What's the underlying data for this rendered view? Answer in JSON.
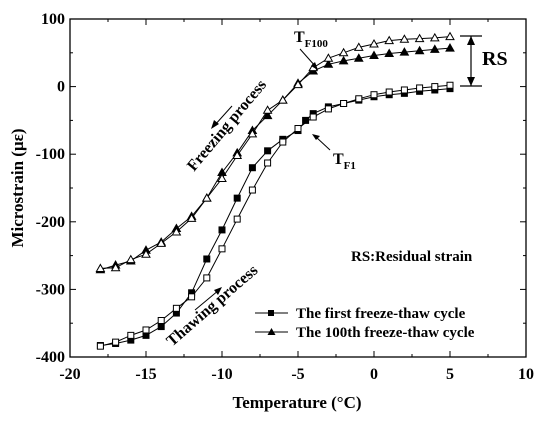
{
  "chart_data": {
    "type": "line",
    "xlabel": "Temperature (°C)",
    "ylabel": "Microstrain (με)",
    "xlim": [
      -20,
      10
    ],
    "ylim": [
      -400,
      100
    ],
    "xticks": [
      -20,
      -15,
      -10,
      -5,
      0,
      5,
      10
    ],
    "yticks": [
      -400,
      -300,
      -200,
      -100,
      0,
      100
    ],
    "grid": false,
    "legend_position": "bottom-right",
    "series": [
      {
        "name": "The first freeze-thaw cycle",
        "marker": "square",
        "color": "#000000",
        "thawing": {
          "x": [
            -18.0,
            -17.0,
            -16.0,
            -15.0,
            -14.0,
            -13.0,
            -12.0,
            -11.0,
            -10.0,
            -9.0,
            -8.0,
            -7.0,
            -6.0,
            -5.0,
            -4.5,
            -4.0,
            -3.0,
            -2.0,
            -1.0,
            0.0,
            1.0,
            2.0,
            3.0,
            4.0,
            5.0
          ],
          "y": [
            -383,
            -380,
            -375,
            -368,
            -355,
            -335,
            -305,
            -255,
            -212,
            -165,
            -120,
            -95,
            -78,
            -65,
            -50,
            -40,
            -30,
            -25,
            -20,
            -15,
            -12,
            -10,
            -7,
            -5,
            -3
          ]
        },
        "freezing": {
          "x": [
            5.0,
            4.0,
            3.0,
            2.0,
            1.0,
            0.0,
            -1.0,
            -2.0,
            -3.0,
            -4.0,
            -5.0,
            -6.0,
            -7.0,
            -8.0,
            -9.0,
            -10.0,
            -11.0,
            -12.0,
            -13.0,
            -14.0,
            -15.0,
            -16.0,
            -17.0,
            -18.0
          ],
          "y": [
            2,
            0,
            -2,
            -5,
            -8,
            -12,
            -18,
            -25,
            -33,
            -45,
            -62,
            -82,
            -113,
            -153,
            -196,
            -240,
            -283,
            -311,
            -328,
            -346,
            -360,
            -368,
            -378,
            -384
          ]
        }
      },
      {
        "name": "The 100th freeze-thaw cycle",
        "marker": "triangle",
        "color": "#000000",
        "thawing": {
          "x": [
            -18.0,
            -17.0,
            -16.0,
            -15.0,
            -14.0,
            -13.0,
            -12.0,
            -11.0,
            -10.0,
            -9.0,
            -8.0,
            -7.0,
            -6.0,
            -5.0,
            -4.0,
            -3.0,
            -2.0,
            -1.0,
            0.0,
            1.0,
            2.0,
            3.0,
            4.0,
            5.0
          ],
          "y": [
            -271,
            -264,
            -258,
            -242,
            -230,
            -210,
            -192,
            -165,
            -127,
            -98,
            -65,
            -43,
            -20,
            5,
            23,
            33,
            38,
            42,
            46,
            49,
            51,
            53,
            55,
            57
          ]
        },
        "freezing": {
          "x": [
            5.0,
            4.0,
            3.0,
            2.0,
            1.0,
            0.0,
            -1.0,
            -2.0,
            -3.0,
            -4.0,
            -5.0,
            -6.0,
            -7.0,
            -8.0,
            -9.0,
            -10.0,
            -11.0,
            -12.0,
            -13.0,
            -14.0,
            -15.0,
            -16.0,
            -17.0,
            -18.0
          ],
          "y": [
            74,
            72,
            71,
            70,
            68,
            63,
            58,
            50,
            42,
            28,
            3,
            -20,
            -35,
            -70,
            -102,
            -136,
            -165,
            -195,
            -215,
            -232,
            -248,
            -256,
            -268,
            -269
          ]
        }
      }
    ],
    "annotations": [
      {
        "text": "T",
        "sub": "F100",
        "at": [
          -4.6,
          20
        ]
      },
      {
        "text": "T",
        "sub": "F1",
        "at": [
          -5.2,
          -68
        ]
      },
      {
        "text": "Freezing process"
      },
      {
        "text": "Thawing process"
      },
      {
        "text": "RS",
        "between": [
          0,
          75
        ],
        "x": 5.5
      },
      {
        "text": "RS:Residual strain"
      }
    ]
  }
}
